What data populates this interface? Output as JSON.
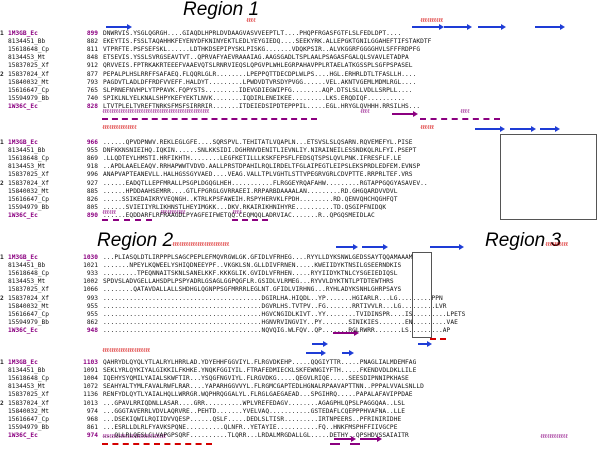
{
  "regions": {
    "r1": "Region 1",
    "r2": "Region 2",
    "r3": "Region 3"
  },
  "colors": {
    "identical": "#d40000",
    "reference": "#8b0080",
    "strand": "#1e3cd6",
    "box": "#555555"
  },
  "blocks": [
    {
      "rows": [
        {
          "n": "1",
          "name": "1M3GB_Ec",
          "pos": "899",
          "seq": "DNWRVIS.YSGLQGRGH....GIAQDLHPRLDVDAAGVASVVEEPTLT....PHQPFRGASFGTFLSLFEDLDPT....",
          "ref": true
        },
        {
          "n": "",
          "name": "8134451_Bb",
          "pos": "882",
          "seq": "EKEYTIS.FSSLTAQAHHKFEYENYDFKNINYEKTLEDLYEYGIEDQ....SEEKYRK.ALLEPGKTGNILGGAHEFTIFSTAKDTF"
        },
        {
          "n": "",
          "name": "15618648_Cp",
          "pos": "811",
          "seq": "VTPRFTE.PSFSEFSKL......LDTHKDSEPIPYSKLPISKG.......VDQKPSIR..ALVKGGRFGGGGHVLSFFFRDPFG"
        },
        {
          "n": "",
          "name": "8134453_Mt",
          "pos": "848",
          "seq": "ETSEVIS.YSSLSVRGSEAVTVT..QPRVAFYAEVRAAAIAG.AAGSGADLTSPLAALPSAGASFGALQLSVAVLETADPA"
        },
        {
          "n": "",
          "name": "15837025_Xf",
          "pos": "912",
          "seq": "QRVVEIS.FPTRKAKRTEEEFVAAEVQTSLRNRVIEQSLQPGVPLWHLEGRPAHAVPPLRTAELATKGSSPLSGFPSPASEL"
        },
        {
          "n": "2",
          "name": "15837024_Xf",
          "pos": "877",
          "seq": "PEPALPLHSLRRFFSAFAEQ.FLQQRLGLR........LPEPPQTTDECDPLWLPS....HGL.ERHRLDTLTFASLLH...."
        },
        {
          "n": "",
          "name": "15840032_Mt",
          "pos": "793",
          "seq": "PAGDVTLADLDFFRDFVVEFF.HALDYT.........LPWDVDTVRSDYPVGG......VEL.AKNTVGEMLMDMLRGL...."
        },
        {
          "n": "",
          "name": "15616647_Cp",
          "pos": "765",
          "seq": "SLPRNEFNVHPLYTPPAVK.FQPYSTS.........IDEVGDIEGWIPFG........AQP.DTSLSLLVDLLSRPLL...."
        },
        {
          "n": "",
          "name": "15594979_Bb",
          "pos": "740",
          "seq": "SPIKLNLYELKNALSHPYKEFYEKTLNVK........IQDIRLENEIKEE.........LKS.ERQDIQF.........."
        },
        {
          "n": "",
          "name": "1W36C_Ec",
          "pos": "828",
          "seq": "LTVTPLELTVREFTNRKSFMSFSIRRRIR.......ITDEIEDSIPDTEPPPIL.....EGL.HRYGLQVHHH.RRSILHS...",
          "ref": true
        }
      ]
    },
    {
      "rows": [
        {
          "n": "1",
          "name": "1M3GB_Ec",
          "pos": "966",
          "seq": "......QPVDPNWV.REKLEGLGFE....SQRSPVL.TEHITATLVQAPLN...ETSVSLSLQSARN.RQVEMEFYL.PISE",
          "ref": true
        },
        {
          "n": "",
          "name": "8134451_Bb",
          "pos": "955",
          "seq": "DNFKKNSNIEIHQ.IQKIN......SNLKKSIDI.DGHRNVDENITLIEVNLIY.NIRAINEILESSNDKQLRLFYI.PSEPT"
        },
        {
          "n": "",
          "name": "15618648_Cp",
          "pos": "869",
          "seq": ".LLQDTEYLHMSTI.HRFIKHTH........LEGFKETILLLKSKFEPSFLFEDSQTSPSLQVLPNK.IFRESFLF.LE"
        },
        {
          "n": "",
          "name": "8134453_Mt",
          "pos": "918",
          "seq": "..APDLAAELEAQV.RRHAPWWTVDVD.AALLPRSTDPAHILRQLIRDELTFGLAIPEGTLEIPSLEKSPRDLEDFEM.EVNSP"
        },
        {
          "n": "",
          "name": "15837025_Xf",
          "pos": "996",
          "seq": "ANAPVAPTEANEVLL.HALHGSSGYVAED....VEAG.VALLTPLVGHTLSTTVPEGRVGRLCDVPTTE.RRPRLTEF.VRS"
        },
        {
          "n": "2",
          "name": "15837024_Xf",
          "pos": "927",
          "seq": "......EADQTLLEPFMRALLPSGPLDGQGLHEH...........FLRGGEYRQAFAHW.........RGTAPPGQGYASAVEV.."
        },
        {
          "n": "",
          "name": "15840032_Mt",
          "pos": "885",
          "seq": "......HPDDAAHSEMRR....GTLFPGRGLGVRRAEEI.RRPARBDAAAALAN.........RD.GHGQARDVVDVL"
        },
        {
          "n": "",
          "name": "15616647_Cp",
          "pos": "826",
          "seq": ".....SSIKEDAIKRYVEQNGH..KTRLKPSFAWEIH.RSPYHERVKLFPDH.........RD.QENVQHCHQGHFQT"
        },
        {
          "n": "",
          "name": "15594979_Bb",
          "pos": "805",
          "seq": "......SVIEIIYRLIKHNSTLHEYIMGKK...DKV.RKAIRIKHNIHYRE..........TD.QSGIPFNIDQK"
        },
        {
          "n": "",
          "name": "1W36C_Ec",
          "pos": "890",
          "seq": "......EQDDARFLRFRAAGDLPYAGFEIFWETQQ.CEQMQQLADRVIAC.......R..QPGQSMEIDLAC",
          "ref": true
        }
      ]
    },
    {
      "rows": [
        {
          "n": "1",
          "name": "1M3GB_Ec",
          "pos": "1030",
          "seq": "...PLIASQLDTLIRPPPLSAGCPEPLEFMQVRGWLGK.GFIDLVFRHEG....RYYLLDYKSNWLGEDSSAYTQQAMAAAM",
          "ref": true
        },
        {
          "n": "",
          "name": "8134451_Bb",
          "pos": "1021",
          "seq": ".......NPEYLKQWEELYSHIQDNEEYPF..VKGKLSN.GLLDIVFRNEN.....KWEIIDYKTNSILGSEERNDKIS"
        },
        {
          "n": "",
          "name": "15618648_Cp",
          "pos": "933",
          "seq": ".........TPEQNNAITSKNLSANELKKF.KKKGLIK.GVIDLVFRHEN.....RYYIIDYKTNLCYSGEIEDIQSL"
        },
        {
          "n": "",
          "name": "8134453_Mt",
          "pos": "1002",
          "seq": "SPDVSLADVGELLAHSDPLPSPYADRLGSAGLGGPQGFLR.GSIDLVLRMEG...RYVVLDYKTNTLPTDTEWTHRS"
        },
        {
          "n": "",
          "name": "15837025_Xf",
          "pos": "1066",
          "seq": "........QATAVDALLALLSHDHGLQGNPPSGFMRRRLEGLNT.GFIDLVIRHNG...RYHLADYKSNHLGHRPSAYS"
        },
        {
          "n": "2",
          "name": "15837024_Xf",
          "pos": "993",
          "seq": "..........................................DGIRLHA.HIQDL..YP.......HGIARLR...LG.........PPN"
        },
        {
          "n": "",
          "name": "15840032_Mt",
          "pos": "955",
          "seq": "..........................................DGVRLHS.TVTPV..FG.......RRTIVVLR...LG.........LVR"
        },
        {
          "n": "",
          "name": "15616647_Cp",
          "pos": "955",
          "seq": "..........................................HGVCNGIDLKIVT..YY........TVIDINSPR....IS.........LPETS"
        },
        {
          "n": "",
          "name": "15594979_Bb",
          "pos": "862",
          "seq": "..........................................HGNVRVINGVIY..PY.......SINIKIES.......EN.........VAE"
        },
        {
          "n": "",
          "name": "1W36C_Ec",
          "pos": "948",
          "seq": "..........................................NQVQIG.WLFQV..QP.......RGLRWRR.......LS.........AP",
          "ref": true
        }
      ]
    },
    {
      "rows": [
        {
          "n": "1",
          "name": "1M3GB_Ec",
          "pos": "1103",
          "seq": "QAHRYDLQYQLYTLALRYLHRRLAD.YDYEHHFGGVIYL.FLRGVDKEHP.....QQGIYTTR.....PNAGLIALMDEMFAG",
          "ref": true
        },
        {
          "n": "",
          "name": "8134451_Bb",
          "pos": "1091",
          "seq": "SEKLYRLQYKIYALGIKKILFKHKE.YNQKFGGIYIL.FTRAFEDMIECKLSKFEWNGIYFTH.....FKENDVDLDKLLILE"
        },
        {
          "n": "",
          "name": "15618648_Cp",
          "pos": "1004",
          "seq": "IQEHYSYQMILYAIALSKWFTIR...YSQGFNGVIYL.FLRGVDKG.....QEGVLRIQE.....SEESDIPNNIPKHASE"
        },
        {
          "n": "",
          "name": "8134453_Mt",
          "pos": "1072",
          "seq": "SEAHYALTYMLFAVALRWFLRAR....YAPARHGGVVYL.FLRGMCGAPTEDLHGNALRPAAVAPTTNN..PPPALVVALSNLLD"
        },
        {
          "n": "",
          "name": "15837025_Xf",
          "pos": "1136",
          "seq": "RENFYDLQYTLYAIALHQLLWRRGR.WQPHRQGGALYL.FLRGLGAEGAEAD...SPGIHRQ.....PAPALAFAVIPPDAE"
        },
        {
          "n": "2",
          "name": "15837024_Xf",
          "pos": "1013",
          "seq": "...GPAVLRRIQDNLLASAR....GRR..........WPLVREFEDAGV........AGAGPHLQPSLPAGGQAA..LSL"
        },
        {
          "n": "",
          "name": "15840032_Mt",
          "pos": "974",
          "seq": "...GGGTAVERRLVDVLAQRVRE..PEHTD.......YVELVAQ...........GSTEDAFLCQEPPPHVAFNA..LLE"
        },
        {
          "n": "",
          "name": "15616647_Cp",
          "pos": "968",
          "seq": "...DSEKIQWILRQIIDVVQESP......QSLF.....DEDLSLTISR.........IRTNPEERS..PFRINIRIDHE"
        },
        {
          "n": "",
          "name": "15594979_Bb",
          "pos": "861",
          "seq": "...ESRLLDLRLFYAVKSPQNE..........QLNFR..YETAYIE...........FQ..HNKFMSPHFFIIVGCPE"
        },
        {
          "n": "",
          "name": "1W36C_Ec",
          "pos": "974",
          "seq": "...QLLRLQESLCLVAPGPSQRF..........TLQRR...LRDALMRGDALLGL.....DETHY..QPSHDVSSAIAITR",
          "ref": true
        }
      ]
    }
  ]
}
